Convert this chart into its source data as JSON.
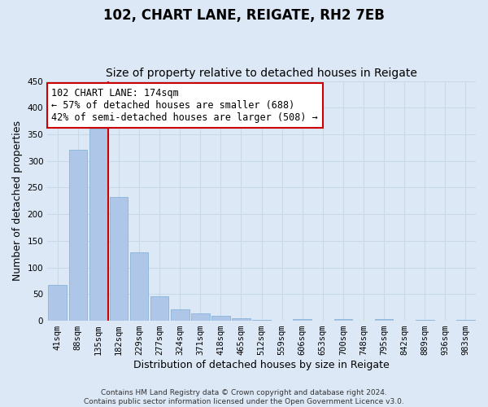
{
  "title": "102, CHART LANE, REIGATE, RH2 7EB",
  "subtitle": "Size of property relative to detached houses in Reigate",
  "xlabel": "Distribution of detached houses by size in Reigate",
  "ylabel": "Number of detached properties",
  "all_bar_labels": [
    "41sqm",
    "88sqm",
    "135sqm",
    "182sqm",
    "229sqm",
    "277sqm",
    "324sqm",
    "371sqm",
    "418sqm",
    "465sqm",
    "512sqm",
    "559sqm",
    "606sqm",
    "653sqm",
    "700sqm",
    "748sqm",
    "795sqm",
    "842sqm",
    "889sqm",
    "936sqm",
    "983sqm"
  ],
  "all_bar_values": [
    67,
    321,
    360,
    233,
    128,
    46,
    22,
    14,
    9,
    5,
    2,
    0,
    3,
    0,
    3,
    0,
    3,
    0,
    2,
    0,
    2
  ],
  "bar_color": "#aec6e8",
  "bar_edgecolor": "#7aadd4",
  "grid_color": "#c8d8e8",
  "background_color": "#dce8f5",
  "vline_pos": 2.5,
  "vline_color": "#cc0000",
  "annotation_line1": "102 CHART LANE: 174sqm",
  "annotation_line2": "← 57% of detached houses are smaller (688)",
  "annotation_line3": "42% of semi-detached houses are larger (508) →",
  "annotation_box_color": "#ffffff",
  "annotation_box_edgecolor": "#cc0000",
  "ylim": [
    0,
    450
  ],
  "yticks": [
    0,
    50,
    100,
    150,
    200,
    250,
    300,
    350,
    400,
    450
  ],
  "footnote_line1": "Contains HM Land Registry data © Crown copyright and database right 2024.",
  "footnote_line2": "Contains public sector information licensed under the Open Government Licence v3.0.",
  "title_fontsize": 12,
  "subtitle_fontsize": 10,
  "xlabel_fontsize": 9,
  "ylabel_fontsize": 9,
  "tick_fontsize": 7.5,
  "annotation_fontsize": 8.5,
  "footnote_fontsize": 6.5
}
